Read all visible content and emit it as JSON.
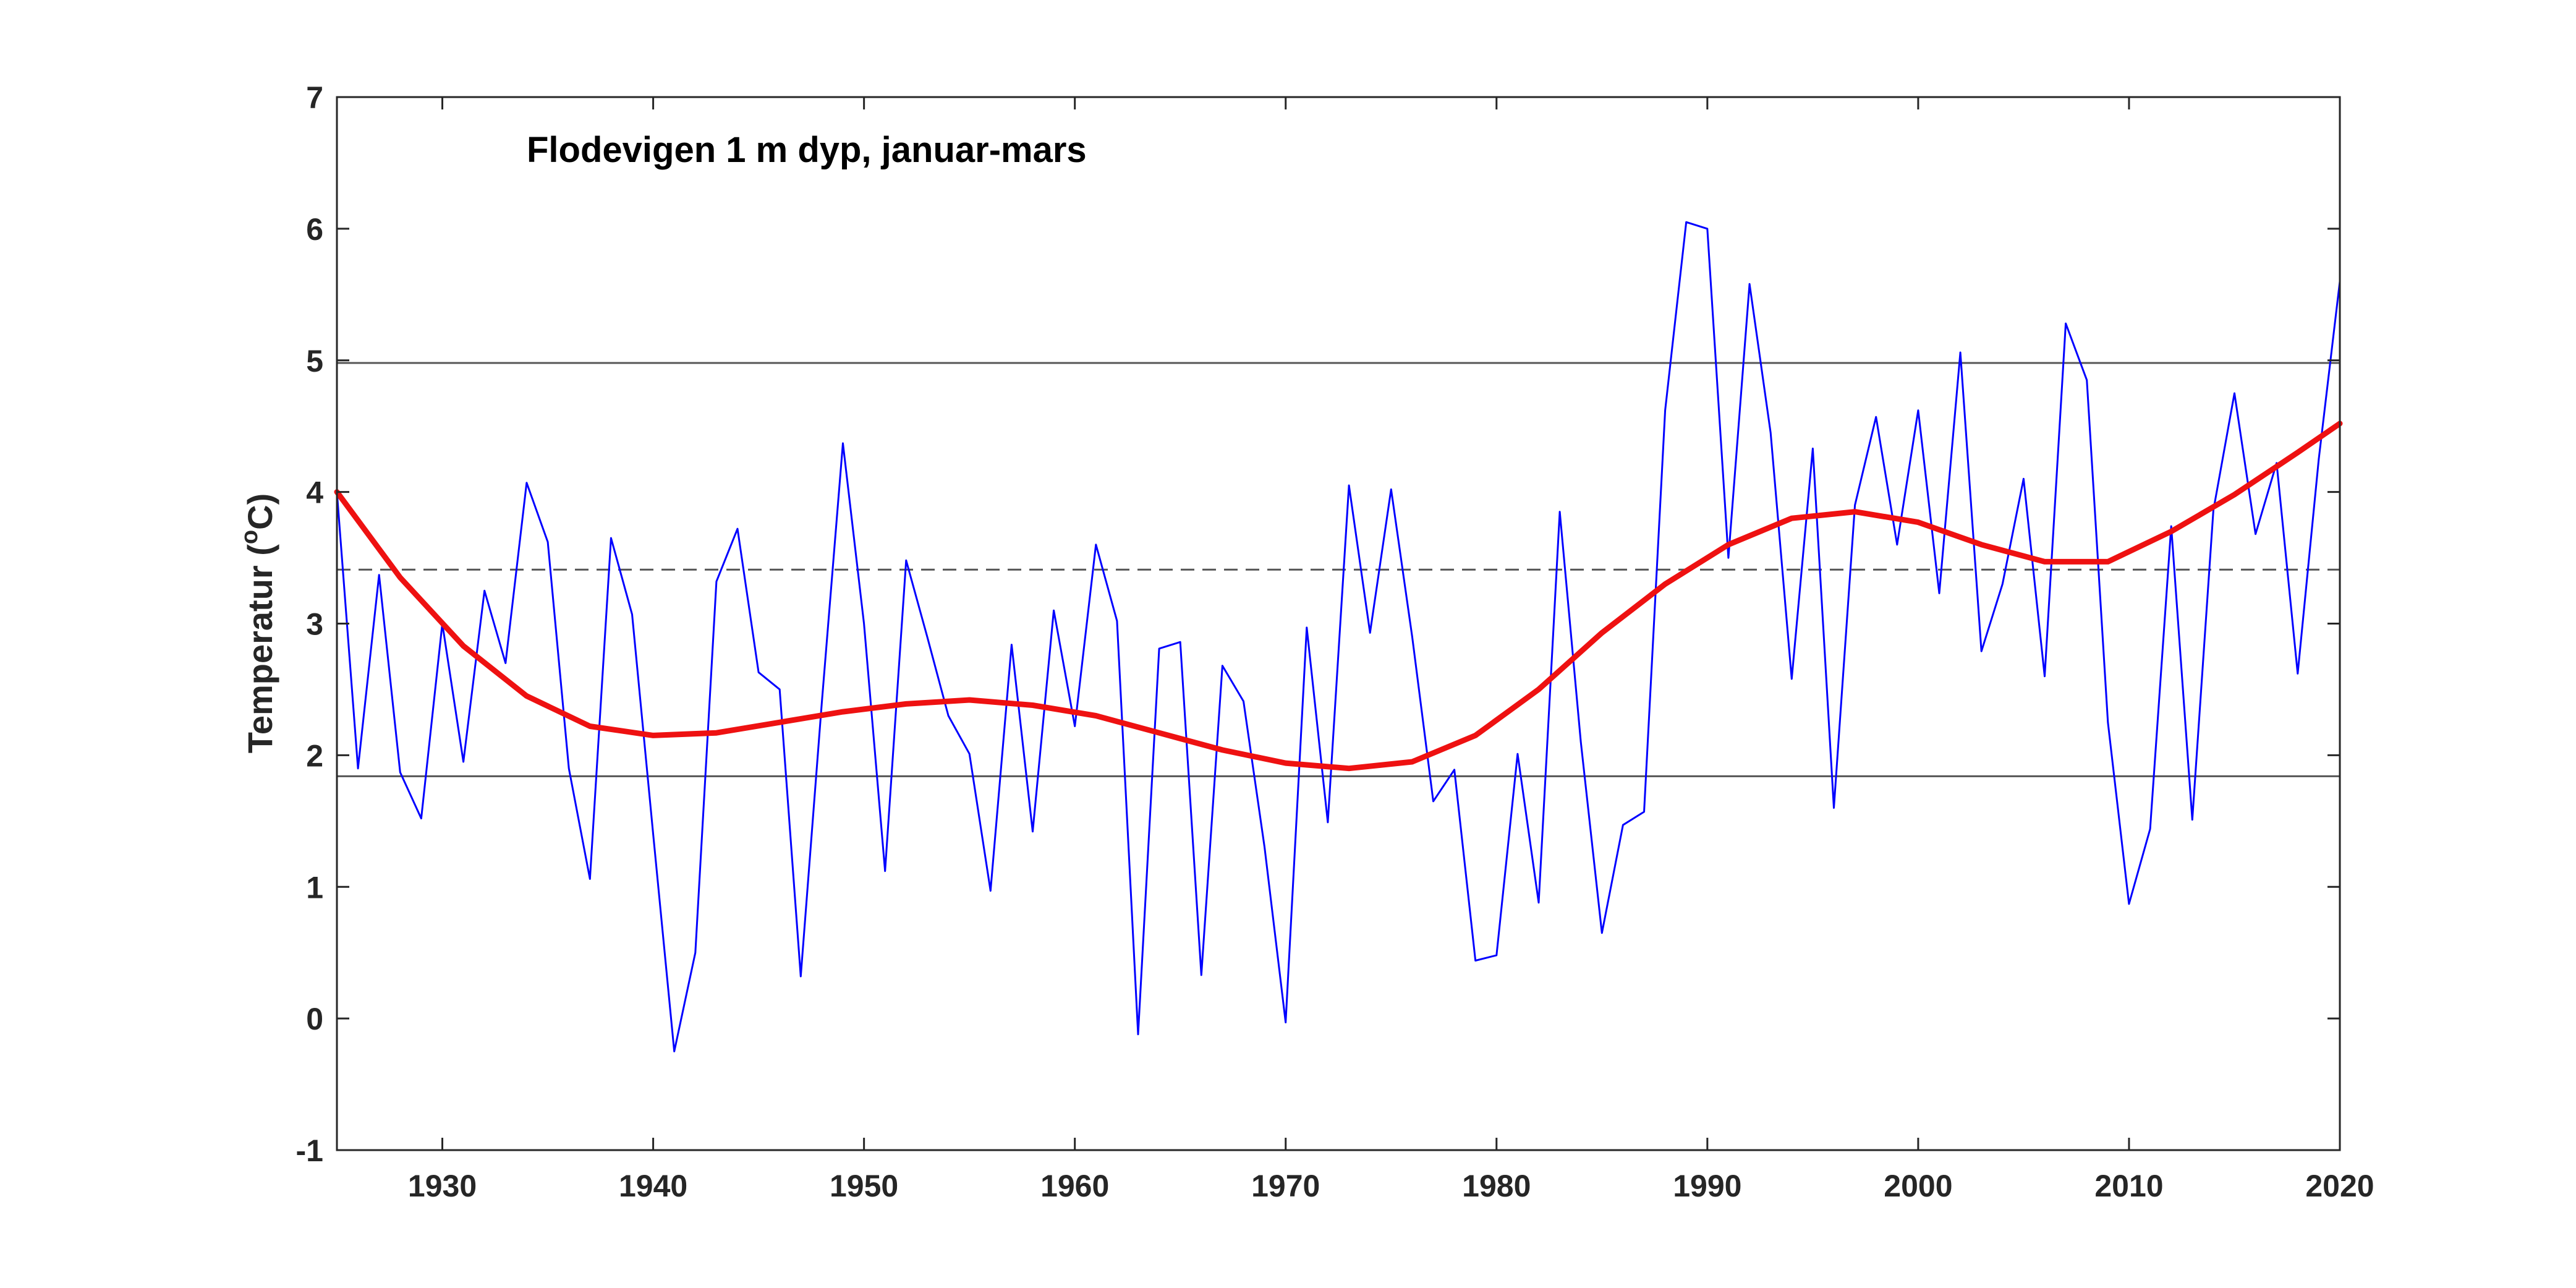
{
  "chart_data": {
    "type": "line",
    "title": "Flodevigen 1 m dyp, januar-mars",
    "ylabel": "Temperatur (",
    "ylabel_sup": "o",
    "ylabel_unit": "C)",
    "xlim": [
      1925,
      2020
    ],
    "ylim": [
      -1,
      7
    ],
    "xticks": [
      1930,
      1940,
      1950,
      1960,
      1970,
      1980,
      1990,
      2000,
      2010,
      2020
    ],
    "yticks": [
      -1,
      0,
      1,
      2,
      3,
      4,
      5,
      6,
      7
    ],
    "grid": false,
    "reference_lines": [
      {
        "y": 4.98,
        "style": "solid",
        "color": "#555555"
      },
      {
        "y": 3.41,
        "style": "dashed",
        "color": "#555555"
      },
      {
        "y": 1.84,
        "style": "solid",
        "color": "#555555"
      }
    ],
    "series": [
      {
        "color": "#0000ff",
        "x": [
          1925,
          1926,
          1927,
          1928,
          1929,
          1930,
          1931,
          1932,
          1933,
          1934,
          1935,
          1936,
          1937,
          1938,
          1939,
          1940,
          1941,
          1942,
          1943,
          1944,
          1945,
          1946,
          1947,
          1948,
          1949,
          1950,
          1951,
          1952,
          1953,
          1954,
          1955,
          1956,
          1957,
          1958,
          1959,
          1960,
          1961,
          1962,
          1963,
          1964,
          1965,
          1966,
          1967,
          1968,
          1969,
          1970,
          1971,
          1972,
          1973,
          1974,
          1975,
          1976,
          1977,
          1978,
          1979,
          1980,
          1981,
          1982,
          1983,
          1984,
          1985,
          1986,
          1987,
          1988,
          1989,
          1990,
          1991,
          1992,
          1993,
          1994,
          1995,
          1996,
          1997,
          1998,
          1999,
          2000,
          2001,
          2002,
          2003,
          2004,
          2005,
          2006,
          2007,
          2008,
          2009,
          2010,
          2011,
          2012,
          2013,
          2014,
          2015,
          2016,
          2017,
          2018,
          2019,
          2020
        ],
        "values": [
          4.0,
          1.9,
          3.37,
          1.87,
          1.52,
          3.0,
          1.95,
          3.25,
          2.7,
          4.07,
          3.62,
          1.9,
          1.06,
          3.65,
          3.07,
          1.4,
          -0.25,
          0.5,
          3.32,
          3.72,
          2.63,
          2.5,
          0.32,
          2.4,
          4.37,
          3.0,
          1.12,
          3.48,
          2.9,
          2.3,
          2.01,
          0.97,
          2.84,
          1.42,
          3.1,
          2.22,
          3.6,
          3.02,
          -0.12,
          2.81,
          2.86,
          0.33,
          2.68,
          2.41,
          1.3,
          -0.03,
          2.97,
          1.49,
          4.05,
          2.93,
          4.02,
          2.9,
          1.65,
          1.89,
          0.44,
          0.48,
          2.01,
          0.88,
          3.85,
          2.1,
          0.65,
          1.47,
          1.57,
          4.62,
          6.05,
          6.0,
          3.5,
          5.58,
          4.45,
          2.58,
          4.33,
          1.6,
          3.9,
          4.57,
          3.6,
          4.62,
          3.23,
          5.06,
          2.79,
          3.3,
          4.1,
          2.6,
          5.28,
          4.85,
          2.25,
          0.87,
          1.44,
          3.74,
          1.51,
          3.86,
          4.75,
          3.68,
          4.22,
          2.62,
          4.25,
          5.6
        ]
      },
      {
        "color": "#ee1111",
        "x": [
          1925,
          1928,
          1931,
          1934,
          1937,
          1940,
          1943,
          1946,
          1949,
          1952,
          1955,
          1958,
          1961,
          1964,
          1967,
          1970,
          1973,
          1976,
          1979,
          1982,
          1985,
          1988,
          1991,
          1994,
          1997,
          2000,
          2003,
          2006,
          2009,
          2012,
          2015,
          2018,
          2020
        ],
        "values": [
          4.0,
          3.35,
          2.83,
          2.45,
          2.22,
          2.15,
          2.17,
          2.25,
          2.33,
          2.39,
          2.42,
          2.38,
          2.3,
          2.17,
          2.04,
          1.94,
          1.9,
          1.95,
          2.15,
          2.5,
          2.93,
          3.3,
          3.6,
          3.8,
          3.85,
          3.77,
          3.6,
          3.47,
          3.47,
          3.7,
          3.98,
          4.3,
          4.52
        ]
      }
    ]
  }
}
